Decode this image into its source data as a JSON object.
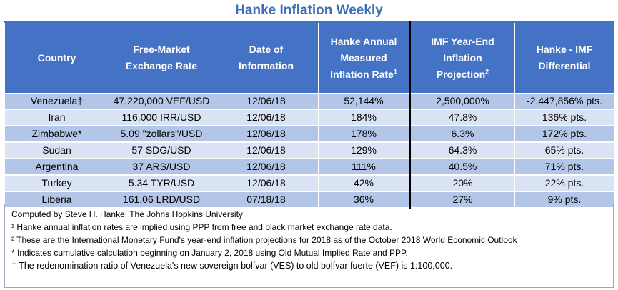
{
  "title": "Hanke Inflation Weekly",
  "headers": [
    {
      "lines": [
        "Country"
      ]
    },
    {
      "lines": [
        "Free-Market",
        "Exchange Rate"
      ]
    },
    {
      "lines": [
        "Date of",
        "Information"
      ]
    },
    {
      "lines": [
        "Hanke Annual",
        "Measured",
        "Inflation Rate"
      ],
      "sup": "1"
    },
    {
      "lines": [
        "IMF Year-End",
        "Inflation",
        "Projection"
      ],
      "sup": "2"
    },
    {
      "lines": [
        "Hanke - IMF",
        "Differential"
      ]
    }
  ],
  "rows": [
    {
      "country": "Venezuela†",
      "rate": "47,220,000 VEF/USD",
      "date": "12/06/18",
      "hanke": "52,144%",
      "imf": "2,500,000%",
      "diff": "-2,447,856% pts."
    },
    {
      "country": "Iran",
      "rate": "116,000 IRR/USD",
      "date": "12/06/18",
      "hanke": "184%",
      "imf": "47.8%",
      "diff": "136% pts."
    },
    {
      "country": "Zimbabwe*",
      "rate": "5.09 \"zollars\"/USD",
      "date": "12/06/18",
      "hanke": "178%",
      "imf": "6.3%",
      "diff": "172% pts."
    },
    {
      "country": "Sudan",
      "rate": "57 SDG/USD",
      "date": "12/06/18",
      "hanke": "129%",
      "imf": "64.3%",
      "diff": "65% pts."
    },
    {
      "country": "Argentina",
      "rate": "37 ARS/USD",
      "date": "12/06/18",
      "hanke": "111%",
      "imf": "40.5%",
      "diff": "71% pts."
    },
    {
      "country": "Turkey",
      "rate": "5.34 TYR/USD",
      "date": "12/06/18",
      "hanke": "42%",
      "imf": "20%",
      "diff": "22% pts."
    },
    {
      "country": "Liberia",
      "rate": "161.06 LRD/USD",
      "date": "07/18/18",
      "hanke": "36%",
      "imf": "27%",
      "diff": "9% pts."
    }
  ],
  "notes": [
    "Computed by Steve H. Hanke, The Johns Hopkins University",
    "¹ Hanke annual inflation rates are implied using PPP from free and black market exchange rate data.",
    "² These are the International Monetary Fund's year-end inflation projections for 2018 as of the October 2018 World Economic Outlook",
    "* Indicates cumulative calculation beginning on January 2, 2018 using Old Mutual Implied Rate and PPP.",
    "† The redenomination ratio of Venezuela's new sovereign bolívar (VES) to old bolívar fuerte (VEF) is 1:100,000."
  ],
  "colors": {
    "header_bg": "#4472c4",
    "row_dark": "#b4c6e7",
    "row_light": "#dae3f3",
    "title": "#3d6fb4"
  }
}
